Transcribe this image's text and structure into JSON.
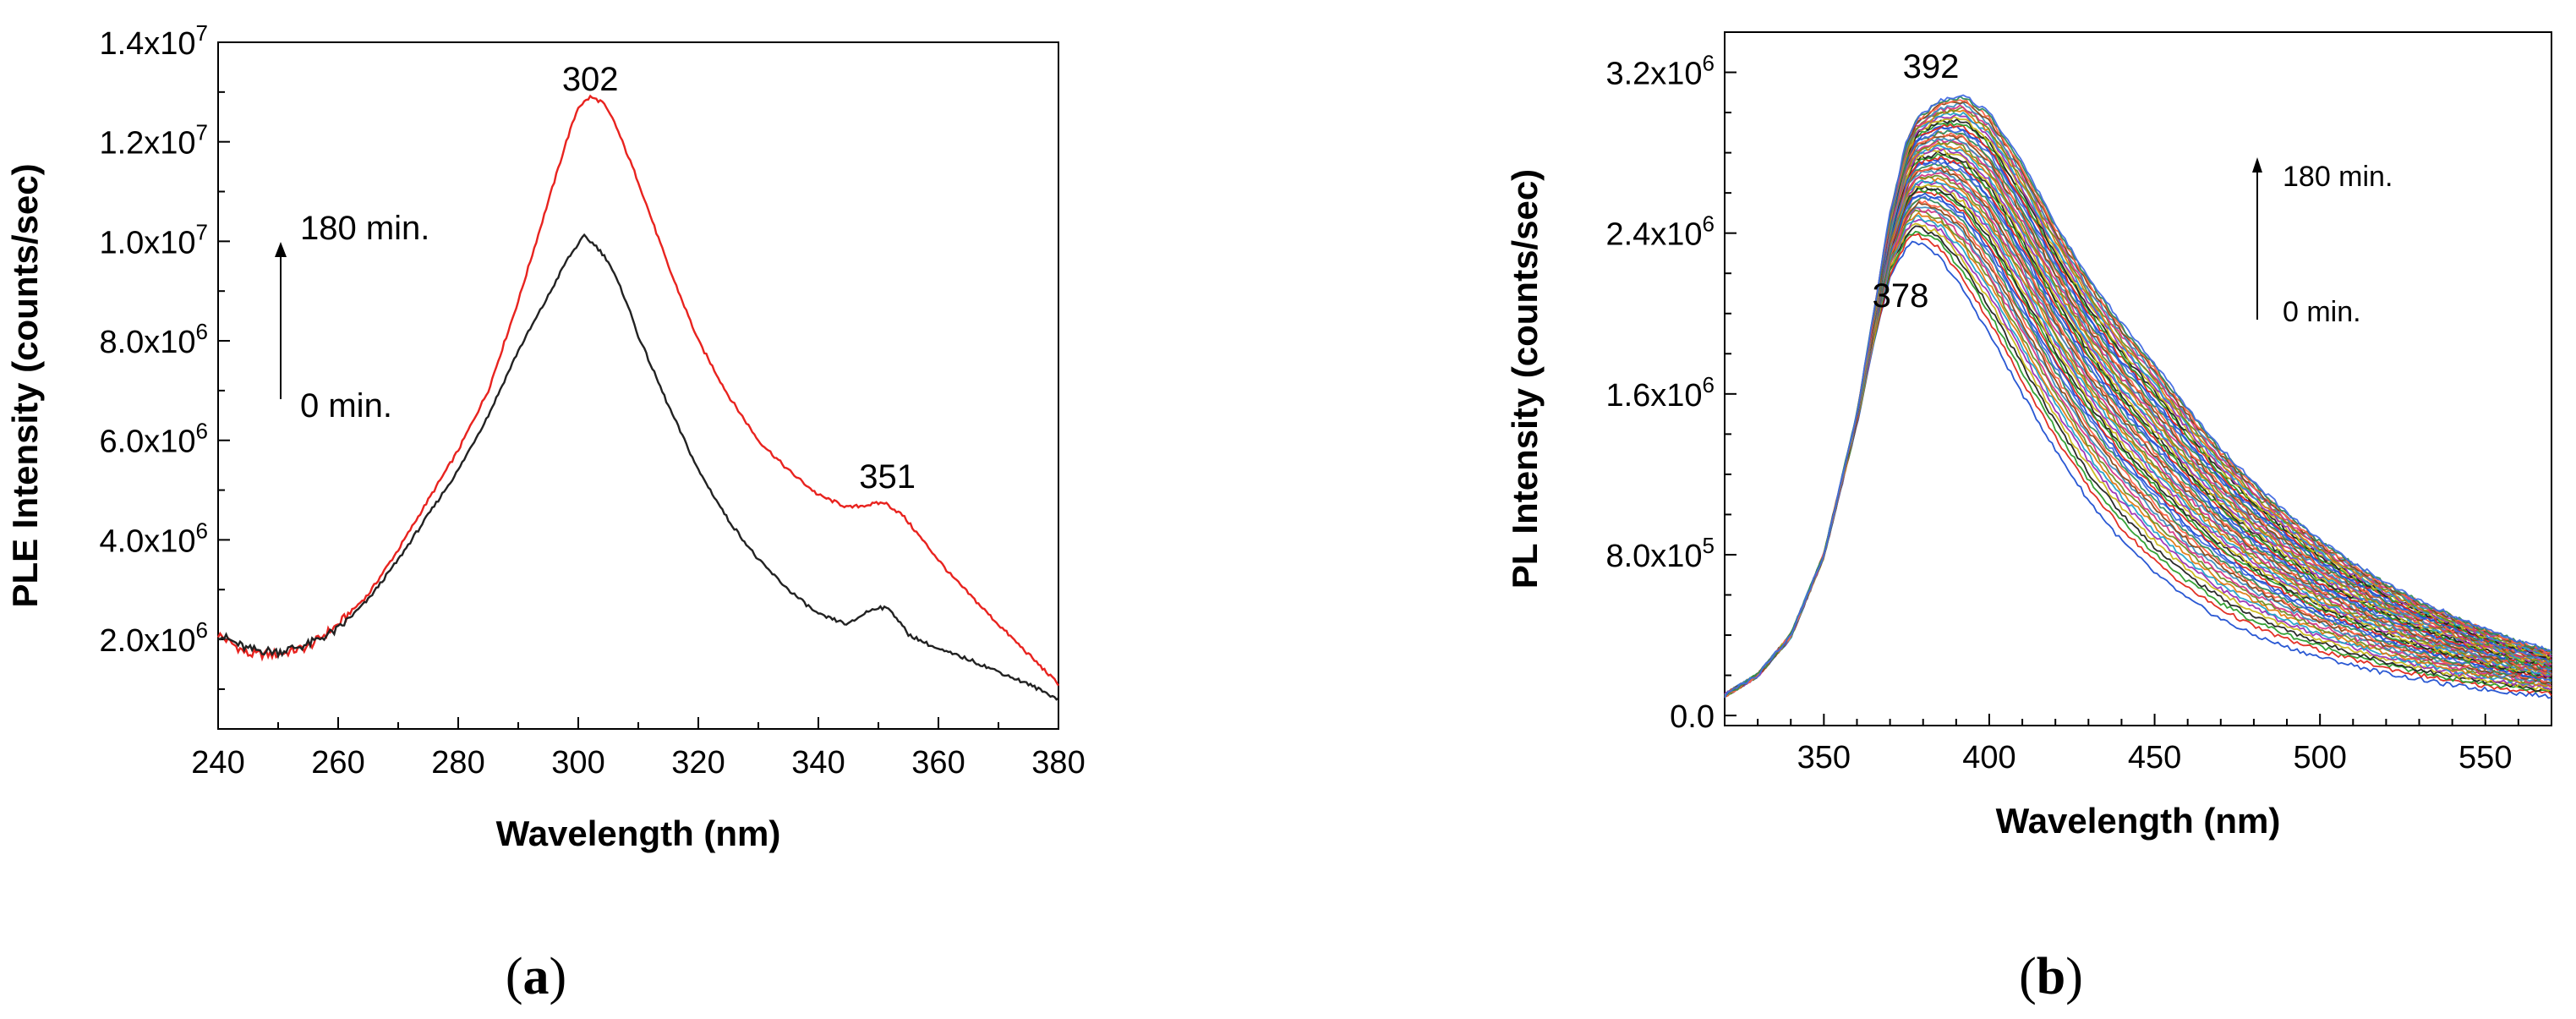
{
  "chart_data": [
    {
      "type": "line",
      "panel_label": "a",
      "xlabel": "Wavelength (nm)",
      "ylabel": "PLE Intensity (counts/sec)",
      "xlim": [
        240,
        380
      ],
      "ylim": [
        200000,
        14000000
      ],
      "x_ticks": [
        240,
        260,
        280,
        300,
        320,
        340,
        360,
        380
      ],
      "y_ticks": [
        {
          "value": 2000000,
          "mant": "2.0x10",
          "exp": "6"
        },
        {
          "value": 4000000,
          "mant": "4.0x10",
          "exp": "6"
        },
        {
          "value": 6000000,
          "mant": "6.0x10",
          "exp": "6"
        },
        {
          "value": 8000000,
          "mant": "8.0x10",
          "exp": "6"
        },
        {
          "value": 10000000,
          "mant": "1.0x10",
          "exp": "7"
        },
        {
          "value": 12000000,
          "mant": "1.2x10",
          "exp": "7"
        },
        {
          "value": 14000000,
          "mant": "1.4x10",
          "exp": "7"
        }
      ],
      "series": [
        {
          "color": "#e8231f",
          "x": [
            240,
            245,
            250,
            255,
            260,
            265,
            270,
            275,
            280,
            285,
            290,
            295,
            298,
            300,
            302,
            304,
            306,
            310,
            315,
            320,
            325,
            330,
            335,
            340,
            345,
            348,
            351,
            354,
            358,
            362,
            366,
            370,
            375,
            380
          ],
          "y": [
            2100000,
            1700000,
            1700000,
            1850000,
            2300000,
            2900000,
            3800000,
            4800000,
            5800000,
            7000000,
            8800000,
            10800000,
            12000000,
            12700000,
            12900000,
            12800000,
            12400000,
            11200000,
            9500000,
            8000000,
            6900000,
            6000000,
            5400000,
            4900000,
            4650000,
            4700000,
            4750000,
            4500000,
            3900000,
            3300000,
            2800000,
            2300000,
            1700000,
            1100000
          ]
        },
        {
          "color": "#222222",
          "x": [
            240,
            245,
            250,
            255,
            260,
            265,
            270,
            275,
            280,
            285,
            290,
            295,
            298,
            300,
            301,
            303,
            305,
            308,
            310,
            315,
            320,
            325,
            330,
            335,
            340,
            345,
            348,
            350,
            352,
            355,
            360,
            365,
            370,
            375,
            380
          ],
          "y": [
            2100000,
            1800000,
            1750000,
            1900000,
            2200000,
            2800000,
            3600000,
            4500000,
            5400000,
            6500000,
            7800000,
            8900000,
            9600000,
            9950000,
            10100000,
            9900000,
            9600000,
            8800000,
            8100000,
            6700000,
            5400000,
            4400000,
            3600000,
            3000000,
            2500000,
            2300000,
            2550000,
            2650000,
            2600000,
            2100000,
            1800000,
            1600000,
            1350000,
            1100000,
            800000
          ]
        }
      ],
      "annotations": {
        "peak1": "302",
        "peak2": "351",
        "time_top": "180 min.",
        "time_bottom": "0 min."
      }
    },
    {
      "type": "line",
      "panel_label": "b",
      "xlabel": "Wavelength (nm)",
      "ylabel": "PL Intensity (counts/sec)",
      "xlim": [
        320,
        570
      ],
      "ylim": [
        -50000,
        3400000
      ],
      "x_ticks": [
        350,
        400,
        450,
        500,
        550
      ],
      "y_ticks": [
        {
          "value": 0,
          "mant": "0.0",
          "exp": ""
        },
        {
          "value": 800000,
          "mant": "8.0x10",
          "exp": "5"
        },
        {
          "value": 1600000,
          "mant": "1.6x10",
          "exp": "6"
        },
        {
          "value": 2400000,
          "mant": "2.4x10",
          "exp": "6"
        },
        {
          "value": 3200000,
          "mant": "3.2x10",
          "exp": "6"
        }
      ],
      "series_count": 60,
      "x": [
        320,
        330,
        340,
        350,
        360,
        365,
        370,
        375,
        378,
        385,
        392,
        400,
        410,
        420,
        430,
        440,
        450,
        460,
        470,
        480,
        490,
        500,
        510,
        520,
        530,
        540,
        550,
        560,
        570
      ],
      "first_series": [
        100000,
        200000,
        390000,
        790000,
        1450000,
        1850000,
        2180000,
        2330000,
        2360000,
        2280000,
        2120000,
        1900000,
        1600000,
        1320000,
        1070000,
        870000,
        710000,
        580000,
        480000,
        400000,
        340000,
        290000,
        250000,
        210000,
        180000,
        150000,
        130000,
        110000,
        95000
      ],
      "last_series": [
        100000,
        200000,
        400000,
        800000,
        1500000,
        2000000,
        2500000,
        2860000,
        2970000,
        3060000,
        3090000,
        3000000,
        2750000,
        2450000,
        2180000,
        1950000,
        1750000,
        1530000,
        1330000,
        1160000,
        1010000,
        870000,
        760000,
        660000,
        570000,
        500000,
        430000,
        370000,
        320000
      ],
      "series_colors": [
        "#1f4fd1",
        "#e0261a",
        "#2a9c2a",
        "#202020",
        "#c9b81a",
        "#9b2fb5",
        "#20a3c9",
        "#e07a12",
        "#6b8e23",
        "#d63384",
        "#3c8dbc",
        "#8b4513",
        "#ff6347",
        "#2e8b57",
        "#4169e1"
      ],
      "annotations": {
        "peak_top": "392",
        "peak_bottom": "378",
        "time_top": "180 min.",
        "time_bottom": "0 min."
      }
    }
  ]
}
